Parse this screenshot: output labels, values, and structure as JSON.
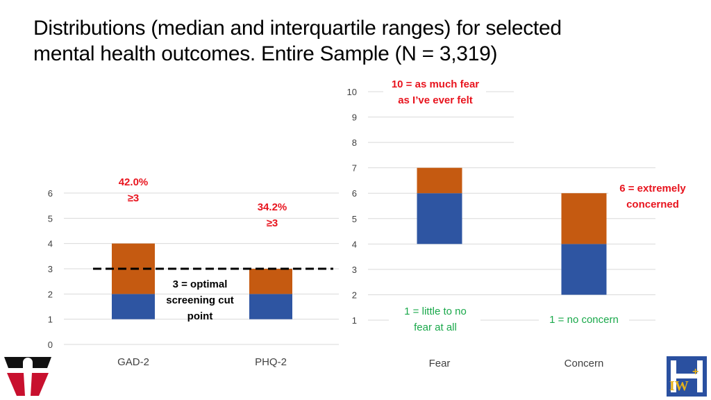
{
  "title_lines": [
    "Distributions (median and interquartile ranges) for selected",
    "mental health outcomes. Entire Sample (N = 3,319)"
  ],
  "colors": {
    "lower_box": "#2e55a2",
    "upper_box": "#c55a11",
    "red": "#e8141e",
    "green": "#19a84a"
  },
  "logos": {
    "left": "red-black-university-logo",
    "right": "iw-plus-logo"
  },
  "chart_data": [
    {
      "type": "box",
      "ylim": [
        0,
        6
      ],
      "yticks": [
        0,
        1,
        2,
        3,
        4,
        5,
        6
      ],
      "categories": [
        "GAD-2",
        "PHQ-2"
      ],
      "boxes": [
        {
          "q1": 1,
          "median": 2,
          "q3": 4,
          "annotation": [
            "42.0%",
            "≥3"
          ]
        },
        {
          "q1": 1,
          "median": 2,
          "q3": 3,
          "annotation": [
            "34.2%",
            "≥3"
          ]
        }
      ],
      "reference_line": {
        "value": 3,
        "label": [
          "3 = optimal",
          "screening cut",
          "point"
        ]
      }
    },
    {
      "type": "box",
      "ylim": [
        1,
        10
      ],
      "yticks": [
        1,
        2,
        3,
        4,
        5,
        6,
        7,
        8,
        9,
        10
      ],
      "categories": [
        "Fear",
        "Concern"
      ],
      "boxes": [
        {
          "q1": 4,
          "median": 6,
          "q3": 7,
          "low_label": [
            "1 = little to no",
            "fear at all"
          ],
          "high_label": [
            "10 = as much fear",
            "as I’ve ever felt"
          ]
        },
        {
          "q1": 2,
          "median": 4,
          "q3": 6,
          "low_label": [
            "1 = no concern"
          ],
          "high_label": [
            "6 = extremely",
            "concerned"
          ]
        }
      ]
    }
  ]
}
